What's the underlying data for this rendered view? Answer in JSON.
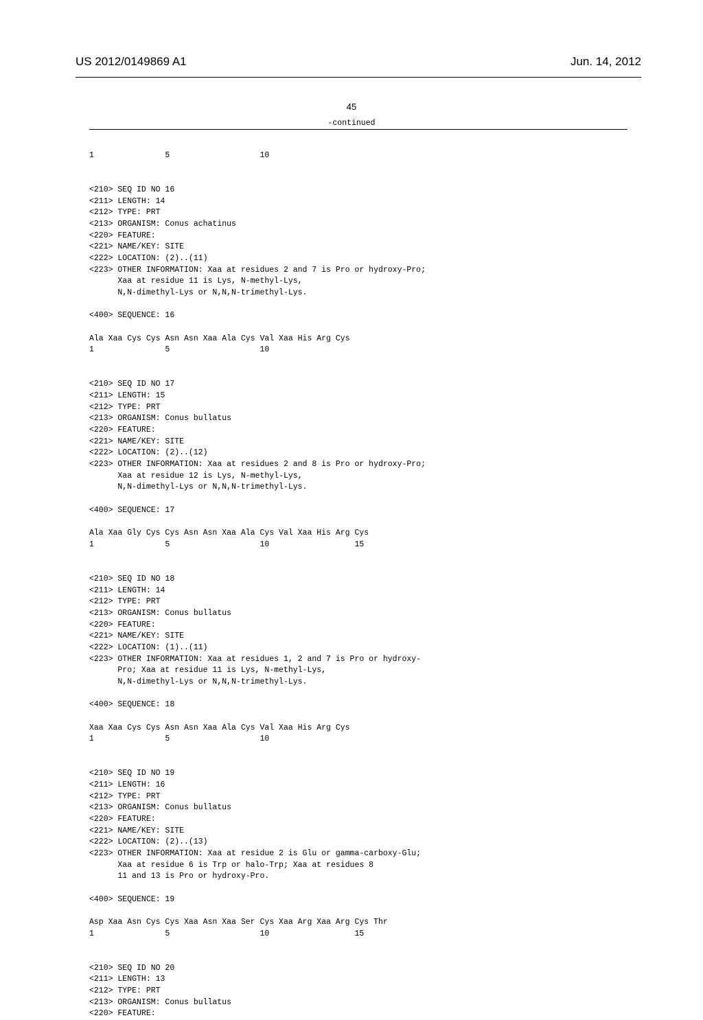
{
  "header": {
    "app_number": "US 2012/0149869 A1",
    "date": "Jun. 14, 2012"
  },
  "page_number": "45",
  "continued_label": "-continued",
  "top_sequence_line": "1               5                   10",
  "sequences": [
    {
      "id": "16",
      "length": "14",
      "type": "PRT",
      "organism": "Conus achatinus",
      "location": "(2)..(11)",
      "other_info_lines": [
        "<223> OTHER INFORMATION: Xaa at residues 2 and 7 is Pro or hydroxy-Pro;",
        "      Xaa at residue 11 is Lys, N-methyl-Lys,",
        "      N,N-dimethyl-Lys or N,N,N-trimethyl-Lys."
      ],
      "residues": "Ala Xaa Cys Cys Asn Asn Xaa Ala Cys Val Xaa His Arg Cys",
      "positions": "1               5                   10"
    },
    {
      "id": "17",
      "length": "15",
      "type": "PRT",
      "organism": "Conus bullatus",
      "location": "(2)..(12)",
      "other_info_lines": [
        "<223> OTHER INFORMATION: Xaa at residues 2 and 8 is Pro or hydroxy-Pro;",
        "      Xaa at residue 12 is Lys, N-methyl-Lys,",
        "      N,N-dimethyl-Lys or N,N,N-trimethyl-Lys."
      ],
      "residues": "Ala Xaa Gly Cys Cys Asn Asn Xaa Ala Cys Val Xaa His Arg Cys",
      "positions": "1               5                   10                  15"
    },
    {
      "id": "18",
      "length": "14",
      "type": "PRT",
      "organism": "Conus bullatus",
      "location": "(1)..(11)",
      "other_info_lines": [
        "<223> OTHER INFORMATION: Xaa at residues 1, 2 and 7 is Pro or hydroxy-",
        "      Pro; Xaa at residue 11 is Lys, N-methyl-Lys,",
        "      N,N-dimethyl-Lys or N,N,N-trimethyl-Lys."
      ],
      "residues": "Xaa Xaa Cys Cys Asn Asn Xaa Ala Cys Val Xaa His Arg Cys",
      "positions": "1               5                   10"
    },
    {
      "id": "19",
      "length": "16",
      "type": "PRT",
      "organism": "Conus bullatus",
      "location": "(2)..(13)",
      "other_info_lines": [
        "<223> OTHER INFORMATION: Xaa at residue 2 is Glu or gamma-carboxy-Glu;",
        "      Xaa at residue 6 is Trp or halo-Trp; Xaa at residues 8",
        "      11 and 13 is Pro or hydroxy-Pro."
      ],
      "residues": "Asp Xaa Asn Cys Cys Xaa Asn Xaa Ser Cys Xaa Arg Xaa Arg Cys Thr",
      "positions": "1               5                   10                  15"
    },
    {
      "id": "20",
      "length": "13",
      "type": "PRT",
      "organism": "Conus bullatus",
      "location": null,
      "other_info_lines": null,
      "residues": null,
      "positions": null
    }
  ],
  "labels": {
    "seq_id": "<210> SEQ ID NO",
    "length": "<211> LENGTH:",
    "type": "<212> TYPE:",
    "organism": "<213> ORGANISM:",
    "feature": "<220> FEATURE:",
    "name_key": "<221> NAME/KEY: SITE",
    "location": "<222> LOCATION:",
    "sequence": "<400> SEQUENCE:"
  }
}
